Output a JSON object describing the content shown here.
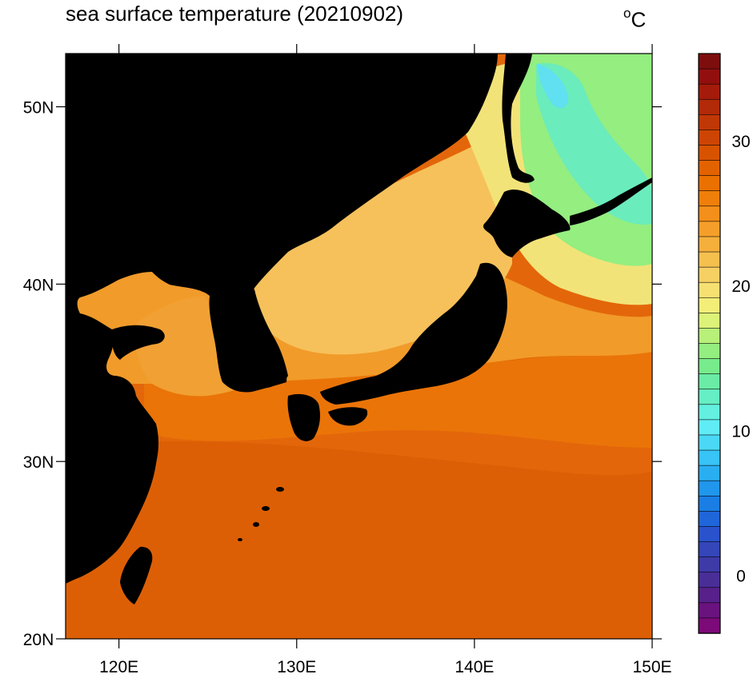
{
  "title": "sea surface temperature (20210902)",
  "unit": "C",
  "unit_sup": "o",
  "axes": {
    "lon_labels": [
      "120E",
      "130E",
      "140E",
      "150E"
    ],
    "lat_labels": [
      "50N",
      "40N",
      "30N",
      "20N"
    ],
    "lon_range": [
      117,
      150
    ],
    "lat_range": [
      20,
      53
    ]
  },
  "colorbar": {
    "labels": [
      "30",
      "20",
      "10",
      "0"
    ],
    "range": [
      -4,
      36
    ],
    "colors": [
      "#7e0e0e",
      "#930f0f",
      "#a51b0b",
      "#b32a08",
      "#c03806",
      "#cd4504",
      "#d85300",
      "#e26200",
      "#ea7000",
      "#ef7f0a",
      "#f38f1a",
      "#f59f2a",
      "#f5b03c",
      "#f6c04f",
      "#f7d063",
      "#f7e072",
      "#f3ee78",
      "#dcf278",
      "#b8f07a",
      "#94ee80",
      "#78ec8c",
      "#6aeca6",
      "#66eec4",
      "#64f0e0",
      "#60ecf6",
      "#4ad8f6",
      "#38c4f6",
      "#2aaef2",
      "#2096ec",
      "#1a7ee4",
      "#1f66da",
      "#2a52cc",
      "#3446ba",
      "#3e3aa8",
      "#4a2e98",
      "#58208a",
      "#6a127e",
      "#7c0a78"
    ]
  },
  "colors": {
    "land": "#000000",
    "background": "#ffffff"
  }
}
